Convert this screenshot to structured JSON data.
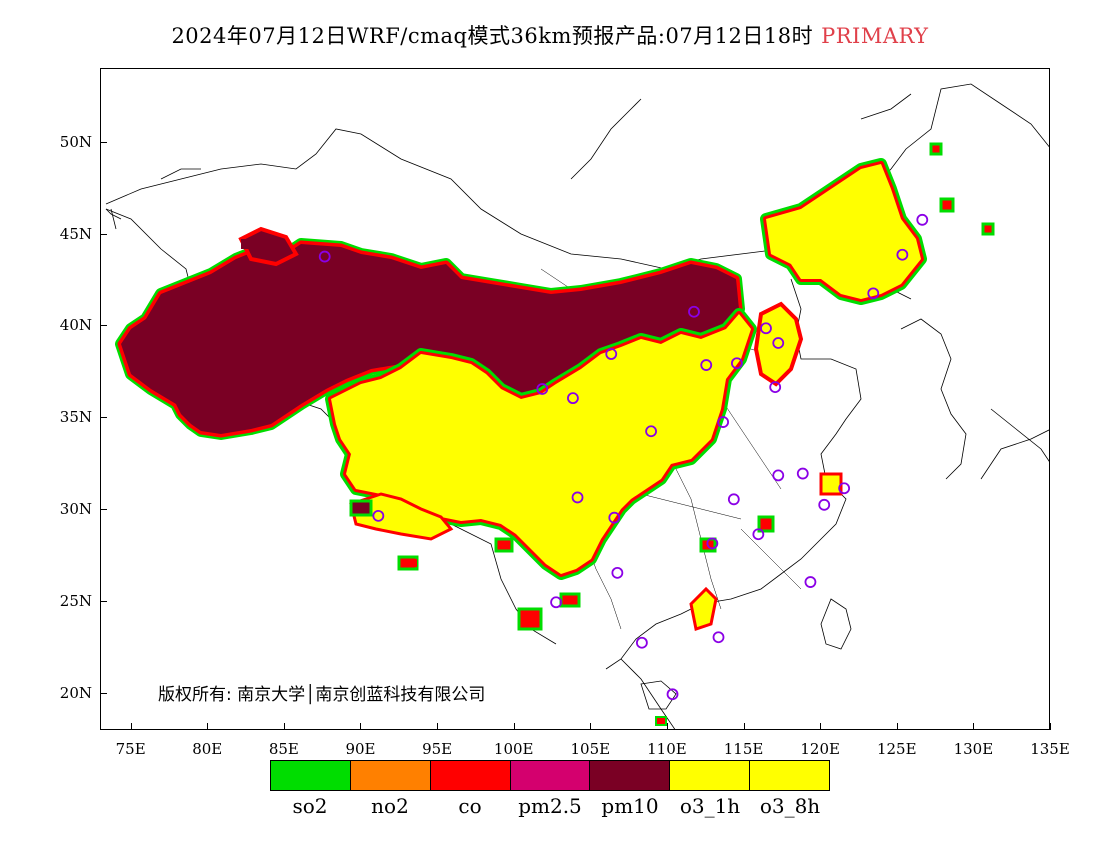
{
  "title": {
    "main": "2024年07月12日WRF/cmaq模式36km预报产品:07月12日18时",
    "tag": "PRIMARY"
  },
  "axes": {
    "lat_ticks": [
      "50N",
      "45N",
      "40N",
      "35N",
      "30N",
      "25N",
      "20N"
    ],
    "lon_ticks": [
      "75E",
      "80E",
      "85E",
      "90E",
      "95E",
      "100E",
      "105E",
      "110E",
      "115E",
      "120E",
      "125E",
      "130E",
      "135E"
    ],
    "lat_range": [
      18,
      54
    ],
    "lon_range": [
      73,
      135
    ]
  },
  "copyright": "版权所有: 南京大学│南京创蓝科技有限公司",
  "legend": [
    {
      "label": "so2",
      "color": "#00dd00"
    },
    {
      "label": "no2",
      "color": "#ff8000"
    },
    {
      "label": "co",
      "color": "#ff0000"
    },
    {
      "label": "pm2.5",
      "color": "#d4006e"
    },
    {
      "label": "pm10",
      "color": "#7a0024"
    },
    {
      "label": "o3_1h",
      "color": "#ffff00"
    },
    {
      "label": "o3_8h",
      "color": "#ffff00"
    }
  ],
  "stations": [
    [
      87.6,
      43.8
    ],
    [
      101.8,
      36.6
    ],
    [
      103.8,
      36.1
    ],
    [
      106.3,
      38.5
    ],
    [
      111.7,
      40.8
    ],
    [
      112.5,
      37.9
    ],
    [
      114.5,
      38.0
    ],
    [
      116.4,
      39.9
    ],
    [
      117.2,
      39.1
    ],
    [
      117.0,
      36.7
    ],
    [
      113.6,
      34.8
    ],
    [
      108.9,
      34.3
    ],
    [
      104.1,
      30.7
    ],
    [
      106.5,
      29.6
    ],
    [
      106.7,
      26.6
    ],
    [
      102.7,
      25.0
    ],
    [
      108.3,
      22.8
    ],
    [
      113.3,
      23.1
    ],
    [
      110.3,
      20.0
    ],
    [
      112.9,
      28.2
    ],
    [
      115.9,
      28.7
    ],
    [
      114.3,
      30.6
    ],
    [
      117.2,
      31.9
    ],
    [
      118.8,
      32.0
    ],
    [
      120.2,
      30.3
    ],
    [
      121.5,
      31.2
    ],
    [
      119.3,
      26.1
    ],
    [
      123.4,
      41.8
    ],
    [
      125.3,
      43.9
    ],
    [
      126.6,
      45.8
    ],
    [
      91.1,
      29.7
    ]
  ]
}
